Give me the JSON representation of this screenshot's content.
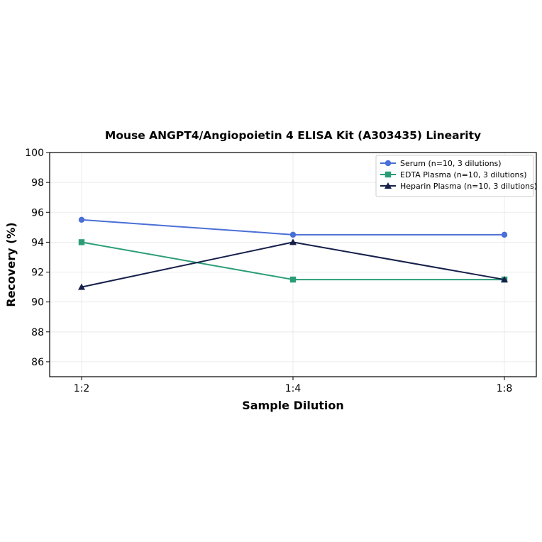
{
  "chart_data": {
    "type": "line",
    "title": "Mouse ANGPT4/Angiopoietin 4 ELISA Kit (A303435) Linearity",
    "xlabel": "Sample Dilution",
    "ylabel": "Recovery (%)",
    "categories": [
      "1:2",
      "1:4",
      "1:8"
    ],
    "ylim": [
      85,
      100
    ],
    "yticks": [
      86,
      88,
      90,
      92,
      94,
      96,
      98,
      100
    ],
    "grid": true,
    "legend_position": "top-right",
    "series": [
      {
        "name": "Serum (n=10, 3 dilutions)",
        "values": [
          95.5,
          94.5,
          94.5
        ],
        "color": "#4a6fd6",
        "marker": "circle"
      },
      {
        "name": "EDTA Plasma (n=10, 3 dilutions)",
        "values": [
          94.0,
          91.5,
          91.5
        ],
        "color": "#2a9d78",
        "marker": "square"
      },
      {
        "name": "Heparin Plasma (n=10, 3 dilutions)",
        "values": [
          91.0,
          94.0,
          91.5
        ],
        "color": "#16204a",
        "marker": "triangle"
      }
    ]
  }
}
